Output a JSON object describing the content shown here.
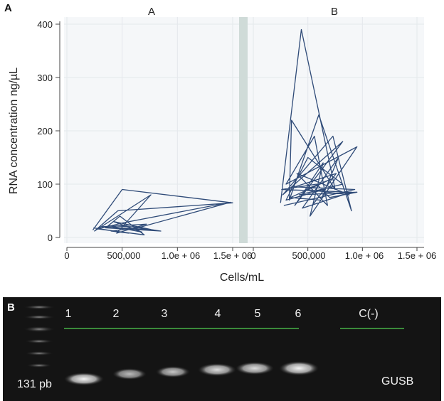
{
  "panel_a": {
    "letter": "A",
    "facet_titles": [
      "A",
      "B"
    ],
    "y_axis_title": "RNA concentration ng/µL",
    "x_axis_title": "Cells/mL",
    "y_ticks": [
      "0",
      "100",
      "200",
      "300",
      "400"
    ],
    "x_ticks_left": [
      "0",
      "500,000",
      "1.0e + 06",
      "1.5e + 06"
    ],
    "x_ticks_right": [
      "0",
      "500,000",
      "1.0e + 06",
      "1.5e + 06"
    ],
    "line_color": "#2f4b78",
    "panel_background": "#f5f7f9",
    "grid_color": "#e4e8ec",
    "divider_color": "#cfdbd8"
  },
  "chart_data": {
    "type": "line",
    "title": "",
    "xlabel": "Cells/mL",
    "ylabel": "RNA concentration ng/µL",
    "xlim": [
      0,
      1500000
    ],
    "ylim": [
      0,
      400
    ],
    "grid": true,
    "facets": [
      {
        "name": "A",
        "points": [
          [
            235000,
            14
          ],
          [
            500000,
            90
          ],
          [
            1500000,
            65
          ],
          [
            460000,
            50
          ],
          [
            250000,
            12
          ],
          [
            760000,
            80
          ],
          [
            450000,
            8
          ],
          [
            720000,
            25
          ],
          [
            300000,
            20
          ],
          [
            760000,
            15
          ],
          [
            420000,
            30
          ],
          [
            680000,
            10
          ],
          [
            380000,
            22
          ],
          [
            600000,
            20
          ],
          [
            850000,
            12
          ],
          [
            350000,
            18
          ],
          [
            480000,
            40
          ],
          [
            700000,
            5
          ],
          [
            280000,
            16
          ],
          [
            520000,
            28
          ],
          [
            1480000,
            66
          ],
          [
            640000,
            18
          ],
          [
            400000,
            12
          ],
          [
            560000,
            8
          ],
          [
            240000,
            18
          ]
        ]
      },
      {
        "name": "B",
        "points": [
          [
            250000,
            65
          ],
          [
            440000,
            390
          ],
          [
            750000,
            90
          ],
          [
            350000,
            220
          ],
          [
            330000,
            70
          ],
          [
            600000,
            230
          ],
          [
            900000,
            50
          ],
          [
            730000,
            190
          ],
          [
            270000,
            80
          ],
          [
            820000,
            180
          ],
          [
            380000,
            60
          ],
          [
            640000,
            140
          ],
          [
            520000,
            40
          ],
          [
            950000,
            170
          ],
          [
            300000,
            100
          ],
          [
            560000,
            190
          ],
          [
            680000,
            60
          ],
          [
            400000,
            120
          ],
          [
            880000,
            80
          ],
          [
            480000,
            90
          ],
          [
            720000,
            110
          ],
          [
            340000,
            75
          ],
          [
            620000,
            70
          ],
          [
            780000,
            150
          ],
          [
            450000,
            55
          ],
          [
            900000,
            85
          ],
          [
            260000,
            90
          ],
          [
            580000,
            100
          ],
          [
            700000,
            75
          ],
          [
            950000,
            85
          ],
          [
            420000,
            80
          ],
          [
            820000,
            100
          ],
          [
            500000,
            150
          ],
          [
            300000,
            70
          ],
          [
            650000,
            90
          ],
          [
            540000,
            60
          ],
          [
            760000,
            120
          ],
          [
            380000,
            95
          ],
          [
            930000,
            90
          ],
          [
            280000,
            60
          ]
        ]
      }
    ]
  },
  "panel_b": {
    "letter": "B",
    "lane_labels": [
      "1",
      "2",
      "3",
      "4",
      "5",
      "6",
      "C(-)"
    ],
    "band_size_label": "131 pb",
    "gene_label": "GUSB",
    "gel_color": "#141414",
    "band_color": "#ececec",
    "separator_color": "#3a8a3a"
  }
}
